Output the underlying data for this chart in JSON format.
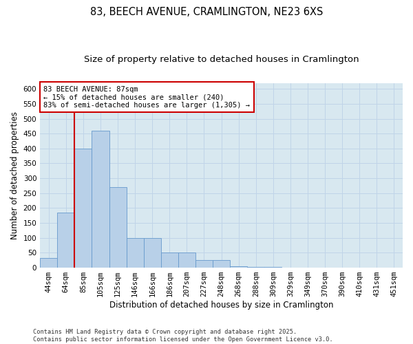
{
  "title": "83, BEECH AVENUE, CRAMLINGTON, NE23 6XS",
  "subtitle": "Size of property relative to detached houses in Cramlington",
  "xlabel": "Distribution of detached houses by size in Cramlington",
  "ylabel": "Number of detached properties",
  "footer_line1": "Contains HM Land Registry data © Crown copyright and database right 2025.",
  "footer_line2": "Contains public sector information licensed under the Open Government Licence v3.0.",
  "bin_labels": [
    "44sqm",
    "64sqm",
    "85sqm",
    "105sqm",
    "125sqm",
    "146sqm",
    "166sqm",
    "186sqm",
    "207sqm",
    "227sqm",
    "248sqm",
    "268sqm",
    "288sqm",
    "309sqm",
    "329sqm",
    "349sqm",
    "370sqm",
    "390sqm",
    "410sqm",
    "431sqm",
    "451sqm"
  ],
  "bar_values": [
    32,
    185,
    400,
    460,
    270,
    100,
    100,
    50,
    50,
    25,
    25,
    5,
    2,
    2,
    0,
    1,
    0,
    0,
    0,
    0,
    1
  ],
  "bar_color": "#b8d0e8",
  "bar_edge_color": "#6699cc",
  "grid_color": "#c0d4e8",
  "background_color": "#d8e8f0",
  "property_line_color": "#cc0000",
  "annotation_text": "83 BEECH AVENUE: 87sqm\n← 15% of detached houses are smaller (240)\n83% of semi-detached houses are larger (1,305) →",
  "annotation_box_color": "#ffffff",
  "annotation_box_edge": "#cc0000",
  "ylim": [
    0,
    620
  ],
  "yticks": [
    0,
    50,
    100,
    150,
    200,
    250,
    300,
    350,
    400,
    450,
    500,
    550,
    600
  ],
  "title_fontsize": 10.5,
  "subtitle_fontsize": 9.5,
  "axis_label_fontsize": 8.5,
  "tick_fontsize": 7.5,
  "annotation_fontsize": 7.5,
  "property_line_bar_index": 2,
  "figsize": [
    6.0,
    5.0
  ],
  "dpi": 100
}
